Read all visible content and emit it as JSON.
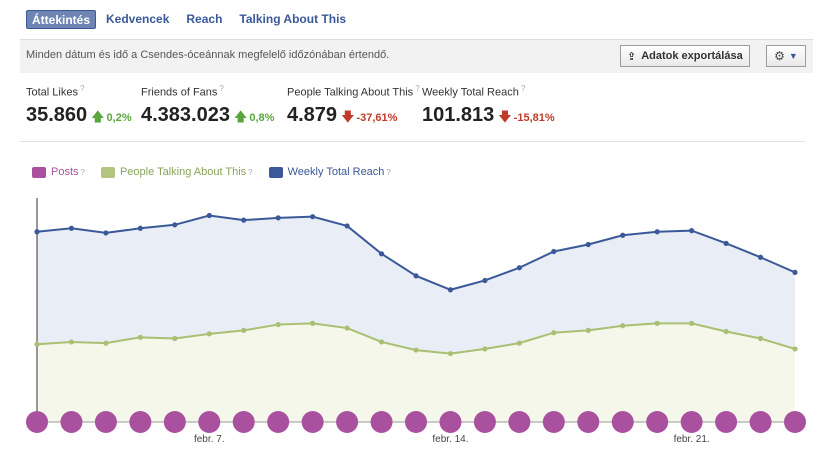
{
  "tabs": [
    {
      "label": "Áttekintés",
      "active": true
    },
    {
      "label": "Kedvencek",
      "active": false
    },
    {
      "label": "Reach",
      "active": false
    },
    {
      "label": "Talking About This",
      "active": false
    }
  ],
  "infobar": {
    "text": "Minden dátum és idő a Csendes-óceánnak megfelelő időzónában értendő.",
    "export_label": "Adatok exportálása",
    "export_icon": "export-icon",
    "settings_icon": "gear-icon"
  },
  "metrics": [
    {
      "label": "Total Likes",
      "help": "?",
      "value": "35.860",
      "trend": "up",
      "change": "0,2%"
    },
    {
      "label": "Friends of Fans",
      "help": "?",
      "value": "4.383.023",
      "trend": "up",
      "change": "0,8%"
    },
    {
      "label": "People Talking About This",
      "help": "?",
      "value": "4.879",
      "trend": "down",
      "change": "-37,61%"
    },
    {
      "label": "Weekly Total Reach",
      "help": "?",
      "value": "101.813",
      "trend": "down",
      "change": "-15,81%"
    }
  ],
  "legend": [
    {
      "label": "Posts",
      "help": "?",
      "color": "#a9519f"
    },
    {
      "label": "People Talking About This",
      "help": "?",
      "color": "#b2c47e"
    },
    {
      "label": "Weekly Total Reach",
      "help": "?",
      "color": "#3b5998"
    }
  ],
  "colors": {
    "reach_line": "#3b5998",
    "reach_fill": "#e9edf6",
    "talking_line": "#a9bf72",
    "talking_fill": "#f4f7ea",
    "posts": "#a9519f",
    "up": "#5aa63c",
    "down": "#c0392b"
  },
  "chart_data": {
    "type": "area",
    "x_ticks": [
      {
        "label": "febr. 7.",
        "index": 5
      },
      {
        "label": "febr. 14.",
        "index": 12
      },
      {
        "label": "febr. 21.",
        "index": 19
      }
    ],
    "ylim": [
      0,
      100
    ],
    "series": [
      {
        "name": "Weekly Total Reach",
        "values": [
          82,
          83.5,
          81.5,
          83.5,
          85,
          89,
          87,
          88,
          88.5,
          84.5,
          72.5,
          63,
          57,
          61,
          66.5,
          73.5,
          76.5,
          80.5,
          82,
          82.5,
          77,
          71,
          64.5
        ]
      },
      {
        "name": "People Talking About This",
        "values": [
          33.5,
          34.5,
          34,
          36.5,
          36,
          38,
          39.5,
          42,
          42.5,
          40.5,
          34.5,
          31,
          29.5,
          31.5,
          34,
          38.5,
          39.5,
          41.5,
          42.5,
          42.5,
          39,
          36,
          31.5
        ]
      },
      {
        "name": "Posts",
        "values": [
          1,
          1,
          1,
          1,
          1,
          1,
          1,
          1,
          1,
          1,
          1,
          1,
          1,
          1,
          1,
          1,
          1,
          1,
          1,
          1,
          1,
          1,
          1
        ]
      }
    ]
  }
}
